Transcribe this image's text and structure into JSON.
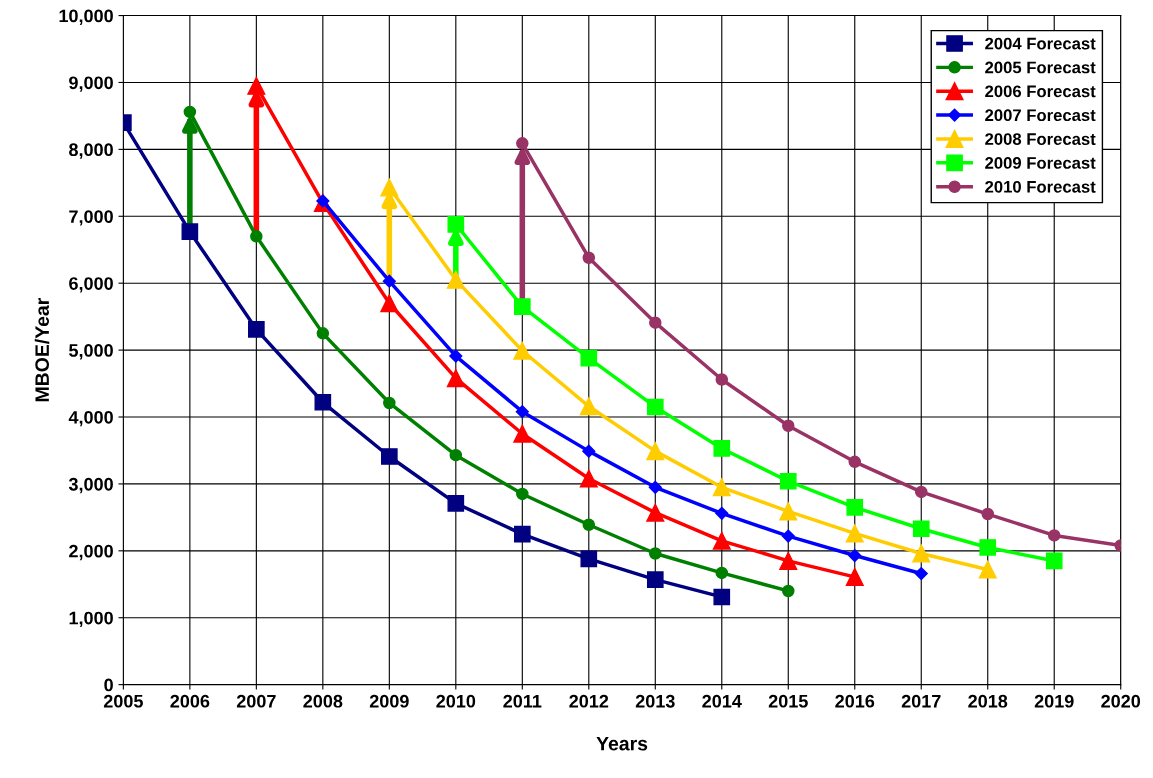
{
  "chart_data": {
    "type": "line",
    "xlabel": "Years",
    "ylabel": "MBOE/Year",
    "xlim": [
      2005,
      2020
    ],
    "xticks": [
      2005,
      2006,
      2007,
      2008,
      2009,
      2010,
      2011,
      2012,
      2013,
      2014,
      2015,
      2016,
      2017,
      2018,
      2019,
      2020
    ],
    "ylim": [
      0,
      10000
    ],
    "yticks": [
      {
        "value": 0,
        "label": "0"
      },
      {
        "value": 1000,
        "label": "1,000"
      },
      {
        "value": 2000,
        "label": "2,000"
      },
      {
        "value": 3000,
        "label": "3,000"
      },
      {
        "value": 4000,
        "label": "4,000"
      },
      {
        "value": 5000,
        "label": "5,000"
      },
      {
        "value": 6000,
        "label": "6,000"
      },
      {
        "value": 7000,
        "label": "7,000"
      },
      {
        "value": 8000,
        "label": "8,000"
      },
      {
        "value": 9000,
        "label": "9,000"
      },
      {
        "value": 10000,
        "label": "10,000"
      }
    ],
    "grid": true,
    "legend": "top right",
    "line_style": "solid",
    "series": [
      {
        "name": "2004 Forecast",
        "color": "#000080",
        "marker": "square",
        "x": [
          2005,
          2006,
          2007,
          2008,
          2009,
          2010,
          2011,
          2012,
          2013,
          2014
        ],
        "values": [
          8400,
          6770,
          5310,
          4220,
          3410,
          2710,
          2250,
          1880,
          1570,
          1310
        ]
      },
      {
        "name": "2005 Forecast",
        "color": "#008000",
        "marker": "circle",
        "x": [
          2006,
          2007,
          2008,
          2009,
          2010,
          2011,
          2012,
          2013,
          2014,
          2015
        ],
        "values": [
          8560,
          6700,
          5250,
          4210,
          3430,
          2850,
          2390,
          1960,
          1670,
          1400
        ]
      },
      {
        "name": "2006 Forecast",
        "color": "#ff0000",
        "marker": "triangle",
        "x": [
          2007,
          2008,
          2009,
          2010,
          2011,
          2012,
          2013,
          2014,
          2015,
          2016
        ],
        "values": [
          8950,
          7200,
          5700,
          4580,
          3750,
          3080,
          2570,
          2150,
          1850,
          1610
        ]
      },
      {
        "name": "2007 Forecast",
        "color": "#0000ff",
        "marker": "diamond",
        "x": [
          2008,
          2009,
          2010,
          2011,
          2012,
          2013,
          2014,
          2015,
          2016,
          2017
        ],
        "values": [
          7230,
          6030,
          4910,
          4080,
          3490,
          2950,
          2560,
          2220,
          1930,
          1660
        ]
      },
      {
        "name": "2008 Forecast",
        "color": "#ffcc00",
        "marker": "triangle",
        "x": [
          2009,
          2010,
          2011,
          2012,
          2013,
          2014,
          2015,
          2016,
          2017,
          2018
        ],
        "values": [
          7430,
          6050,
          4990,
          4160,
          3490,
          2950,
          2590,
          2260,
          1960,
          1720
        ]
      },
      {
        "name": "2009 Forecast",
        "color": "#00ff00",
        "marker": "square",
        "x": [
          2010,
          2011,
          2012,
          2013,
          2014,
          2015,
          2016,
          2017,
          2018,
          2019
        ],
        "values": [
          6880,
          5650,
          4880,
          4150,
          3530,
          3040,
          2650,
          2330,
          2050,
          1850
        ]
      },
      {
        "name": "2010 Forecast",
        "color": "#993366",
        "marker": "circle",
        "x": [
          2011,
          2012,
          2013,
          2014,
          2015,
          2016,
          2017,
          2018,
          2019,
          2020
        ],
        "values": [
          8090,
          6380,
          5410,
          4560,
          3870,
          3330,
          2880,
          2550,
          2230,
          2080
        ]
      }
    ]
  }
}
